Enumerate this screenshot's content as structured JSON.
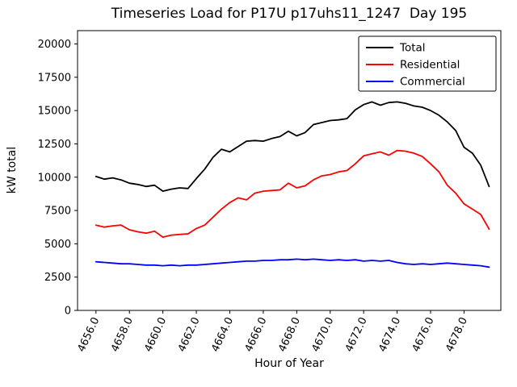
{
  "chart_data": {
    "type": "line",
    "title": "Timeseries Load for P17U p17uhs11_1247  Day 195",
    "xlabel": "Hour of Year",
    "ylabel": "kW total",
    "grid": false,
    "legend_position": "upper right",
    "xlim": [
      4654.9,
      4680.2
    ],
    "ylim": [
      0,
      21000
    ],
    "x_ticks": [
      4656,
      4658,
      4660,
      4662,
      4664,
      4666,
      4668,
      4670,
      4672,
      4674,
      4676,
      4678
    ],
    "x_tick_labels": [
      "4656.0",
      "4658.0",
      "4660.0",
      "4662.0",
      "4664.0",
      "4666.0",
      "4668.0",
      "4670.0",
      "4672.0",
      "4674.0",
      "4676.0",
      "4678.0"
    ],
    "y_ticks": [
      0,
      2500,
      5000,
      7500,
      10000,
      12500,
      15000,
      17500,
      20000
    ],
    "y_tick_labels": [
      "0",
      "2500",
      "5000",
      "7500",
      "10000",
      "12500",
      "15000",
      "17500",
      "20000"
    ],
    "x": [
      4656.0,
      4656.5,
      4657.0,
      4657.5,
      4658.0,
      4658.5,
      4659.0,
      4659.5,
      4660.0,
      4660.5,
      4661.0,
      4661.5,
      4662.0,
      4662.5,
      4663.0,
      4663.5,
      4664.0,
      4664.5,
      4665.0,
      4665.5,
      4666.0,
      4666.5,
      4667.0,
      4667.5,
      4668.0,
      4668.5,
      4669.0,
      4669.5,
      4670.0,
      4670.5,
      4671.0,
      4671.5,
      4672.0,
      4672.5,
      4673.0,
      4673.5,
      4674.0,
      4674.5,
      4675.0,
      4675.5,
      4676.0,
      4676.5,
      4677.0,
      4677.5,
      4678.0,
      4678.5,
      4679.0,
      4679.5
    ],
    "series": [
      {
        "name": "Total",
        "color": "#000000",
        "values": [
          10050,
          9850,
          9950,
          9800,
          9550,
          9450,
          9300,
          9400,
          8950,
          9100,
          9200,
          9150,
          9900,
          10600,
          11500,
          12100,
          11900,
          12300,
          12700,
          12750,
          12700,
          12900,
          13050,
          13450,
          13100,
          13350,
          13950,
          14100,
          14250,
          14300,
          14400,
          15050,
          15450,
          15650,
          15400,
          15600,
          15650,
          15550,
          15350,
          15250,
          15000,
          14650,
          14150,
          13500,
          12250,
          11800,
          10900,
          9300
        ]
      },
      {
        "name": "Residential",
        "color": "#ff0000",
        "values": [
          6400,
          6250,
          6350,
          6400,
          6050,
          5900,
          5800,
          5950,
          5500,
          5650,
          5700,
          5750,
          6150,
          6400,
          7000,
          7600,
          8100,
          8450,
          8300,
          8800,
          8950,
          9000,
          9050,
          9550,
          9200,
          9350,
          9800,
          10100,
          10200,
          10400,
          10500,
          11000,
          11600,
          11750,
          11900,
          11650,
          12000,
          11950,
          11800,
          11550,
          11000,
          10400,
          9400,
          8800,
          8000,
          7600,
          7200,
          6100
        ]
      },
      {
        "name": "Commercial",
        "color": "#0000ff",
        "values": [
          3650,
          3600,
          3550,
          3500,
          3500,
          3450,
          3400,
          3400,
          3350,
          3400,
          3350,
          3400,
          3400,
          3450,
          3500,
          3550,
          3600,
          3650,
          3700,
          3700,
          3750,
          3750,
          3800,
          3800,
          3850,
          3800,
          3850,
          3800,
          3750,
          3800,
          3750,
          3800,
          3700,
          3750,
          3700,
          3750,
          3600,
          3500,
          3450,
          3500,
          3450,
          3500,
          3550,
          3500,
          3450,
          3400,
          3350,
          3250
        ]
      }
    ]
  }
}
